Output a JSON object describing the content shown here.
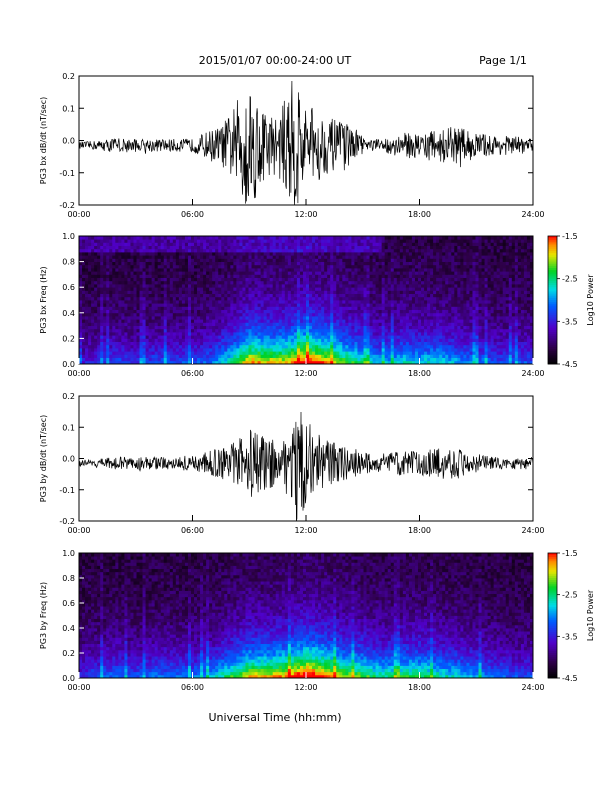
{
  "header": {
    "title": "2015/01/07  00:00-24:00 UT",
    "page": "Page 1/1"
  },
  "footer": {
    "xlabel": "Universal Time (hh:mm)"
  },
  "colors": {
    "trace": "#000000"
  },
  "chart_data": [
    {
      "type": "line",
      "ylabel": "PG3 bx dB/dt (nT/sec)",
      "xticks": [
        "00:00",
        "06:00",
        "12:00",
        "18:00",
        "24:00"
      ],
      "xlim": [
        0,
        24
      ],
      "ylim": [
        -0.2,
        0.2
      ],
      "yticks": [
        "0.2",
        "0.1",
        "0.0",
        "-0.1",
        "-0.2"
      ],
      "envelope": {
        "hours": [
          0,
          1,
          2,
          3,
          4,
          5,
          6,
          7,
          7.5,
          8,
          8.5,
          9,
          9.5,
          10,
          10.5,
          11,
          11.5,
          12,
          12.5,
          13,
          13.5,
          14,
          14.5,
          15,
          15.5,
          16,
          17,
          18,
          19,
          20,
          21,
          22,
          23,
          24
        ],
        "amplitude": [
          0.01,
          0.015,
          0.025,
          0.02,
          0.02,
          0.02,
          0.02,
          0.05,
          0.06,
          0.1,
          0.16,
          0.22,
          0.14,
          0.1,
          0.09,
          0.16,
          0.25,
          0.11,
          0.13,
          0.09,
          0.08,
          0.07,
          0.06,
          0.03,
          0.02,
          0.02,
          0.04,
          0.04,
          0.05,
          0.06,
          0.04,
          0.03,
          0.03,
          0.02
        ]
      }
    },
    {
      "type": "heatmap",
      "ylabel": "PG3 bx Freq (Hz)",
      "xticks": [
        "00:00",
        "06:00",
        "12:00",
        "18:00",
        "24:00"
      ],
      "xlim": [
        0,
        24
      ],
      "ylim": [
        0,
        1.0
      ],
      "yticks": [
        "1.0",
        "0.8",
        "0.6",
        "0.4",
        "0.2",
        "0.0"
      ],
      "colorbar": {
        "label": "Log10 Power",
        "range": [
          -4.5,
          -1.5
        ],
        "ticks": [
          "-1.5",
          "-2.5",
          "-3.5",
          "-4.5"
        ]
      },
      "activity": {
        "hours": [
          0,
          1,
          2,
          3,
          4,
          5,
          6,
          7,
          8,
          9,
          10,
          11,
          12,
          13,
          14,
          15,
          16,
          17,
          18,
          19,
          20,
          21,
          22,
          23,
          24
        ],
        "level": [
          0.2,
          0.25,
          0.3,
          0.25,
          0.3,
          0.3,
          0.3,
          0.35,
          0.5,
          0.75,
          0.7,
          0.7,
          0.85,
          0.75,
          0.6,
          0.5,
          0.4,
          0.45,
          0.45,
          0.45,
          0.4,
          0.35,
          0.3,
          0.3,
          0.3
        ]
      }
    },
    {
      "type": "line",
      "ylabel": "PG3 by dB/dt (nT/sec)",
      "xticks": [
        "00:00",
        "06:00",
        "12:00",
        "18:00",
        "24:00"
      ],
      "xlim": [
        0,
        24
      ],
      "ylim": [
        -0.2,
        0.2
      ],
      "yticks": [
        "0.2",
        "0.1",
        "0.0",
        "-0.1",
        "-0.2"
      ],
      "envelope": {
        "hours": [
          0,
          1,
          2,
          3,
          4,
          5,
          6,
          7,
          7.5,
          8,
          8.5,
          9,
          9.5,
          10,
          10.5,
          11,
          11.5,
          12,
          12.5,
          13,
          13.5,
          14,
          14.5,
          15,
          15.5,
          16,
          17,
          18,
          19,
          20,
          21,
          22,
          23,
          24
        ],
        "amplitude": [
          0.01,
          0.015,
          0.02,
          0.02,
          0.02,
          0.02,
          0.03,
          0.04,
          0.05,
          0.06,
          0.08,
          0.12,
          0.1,
          0.08,
          0.08,
          0.1,
          0.19,
          0.14,
          0.11,
          0.08,
          0.07,
          0.06,
          0.05,
          0.04,
          0.03,
          0.03,
          0.04,
          0.04,
          0.05,
          0.05,
          0.03,
          0.02,
          0.02,
          0.02
        ]
      }
    },
    {
      "type": "heatmap",
      "ylabel": "PG3 by Freq (Hz)",
      "xticks": [
        "00:00",
        "06:00",
        "12:00",
        "18:00",
        "24:00"
      ],
      "xlim": [
        0,
        24
      ],
      "ylim": [
        0,
        1.0
      ],
      "yticks": [
        "1.0",
        "0.8",
        "0.6",
        "0.4",
        "0.2",
        "0.0"
      ],
      "colorbar": {
        "label": "Log10 Power",
        "range": [
          -4.5,
          -1.5
        ],
        "ticks": [
          "-1.5",
          "-2.5",
          "-3.5",
          "-4.5"
        ]
      },
      "activity": {
        "hours": [
          0,
          1,
          2,
          3,
          4,
          5,
          6,
          7,
          8,
          9,
          10,
          11,
          12,
          13,
          14,
          15,
          16,
          17,
          18,
          19,
          20,
          21,
          22,
          23,
          24
        ],
        "level": [
          0.25,
          0.3,
          0.35,
          0.3,
          0.35,
          0.35,
          0.35,
          0.4,
          0.55,
          0.7,
          0.7,
          0.75,
          0.9,
          0.8,
          0.65,
          0.6,
          0.5,
          0.55,
          0.55,
          0.5,
          0.45,
          0.4,
          0.35,
          0.3,
          0.3
        ]
      }
    }
  ]
}
